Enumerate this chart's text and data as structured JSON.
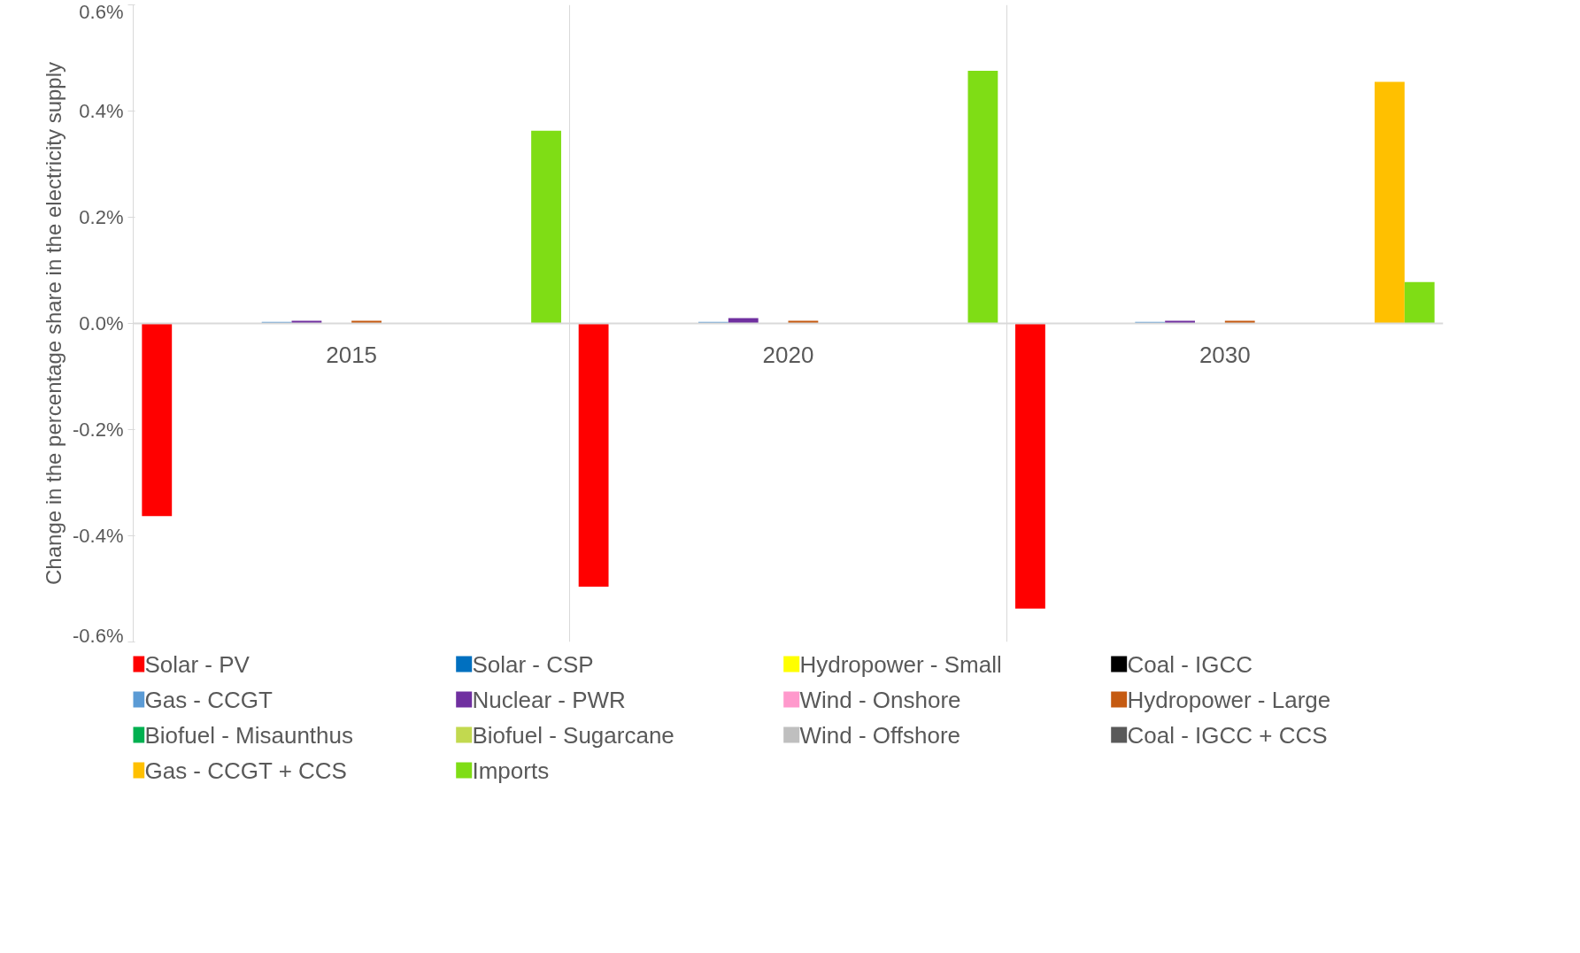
{
  "chart_data": {
    "type": "bar",
    "ylabel": "Change in the percentage share in the electricity supply",
    "categories": [
      "2015",
      "2020",
      "2030"
    ],
    "series": [
      {
        "name": "Solar - PV",
        "color": "#ff0000",
        "values": [
          -0.363,
          -0.496,
          -0.537
        ]
      },
      {
        "name": "Solar - CSP",
        "color": "#0070c0",
        "values": [
          0,
          0,
          0
        ]
      },
      {
        "name": "Hydropower - Small",
        "color": "#ffff00",
        "values": [
          0,
          0,
          0
        ]
      },
      {
        "name": "Coal - IGCC",
        "color": "#000000",
        "values": [
          0,
          0,
          0
        ]
      },
      {
        "name": "Gas - CCGT",
        "color": "#5b9bd5",
        "values": [
          0.003,
          0.003,
          0.003
        ]
      },
      {
        "name": "Nuclear - PWR",
        "color": "#7030a0",
        "values": [
          0.005,
          0.01,
          0.005
        ]
      },
      {
        "name": "Wind - Onshore",
        "color": "#ff99cc",
        "values": [
          0,
          0,
          0
        ]
      },
      {
        "name": "Hydropower - Large",
        "color": "#c55a11",
        "values": [
          0.005,
          0.005,
          0.005
        ]
      },
      {
        "name": "Biofuel - Misaunthus",
        "color": "#00b050",
        "values": [
          0,
          0,
          0
        ]
      },
      {
        "name": "Biofuel - Sugarcane",
        "color": "#c2d94f",
        "values": [
          0,
          0,
          0
        ]
      },
      {
        "name": "Wind - Offshore",
        "color": "#bfbfbf",
        "values": [
          0,
          0,
          0
        ]
      },
      {
        "name": "Coal - IGCC + CCS",
        "color": "#595959",
        "values": [
          0,
          0,
          0
        ]
      },
      {
        "name": "Gas - CCGT + CCS",
        "color": "#ffc000",
        "values": [
          0,
          0,
          0.455
        ]
      },
      {
        "name": "Imports",
        "color": "#7fdd15",
        "values": [
          0.363,
          0.476,
          0.078
        ]
      }
    ],
    "ylim": [
      -0.6,
      0.6
    ],
    "yticks": [
      {
        "value": -0.6,
        "label": "-0.6%"
      },
      {
        "value": -0.4,
        "label": "-0.4%"
      },
      {
        "value": -0.2,
        "label": "-0.2%"
      },
      {
        "value": 0,
        "label": "0.0%"
      },
      {
        "value": 0.2,
        "label": "0.2%"
      },
      {
        "value": 0.4,
        "label": "0.4%"
      },
      {
        "value": 0.6,
        "label": "0.6%"
      }
    ],
    "grid": "x",
    "legend": "bottom"
  }
}
